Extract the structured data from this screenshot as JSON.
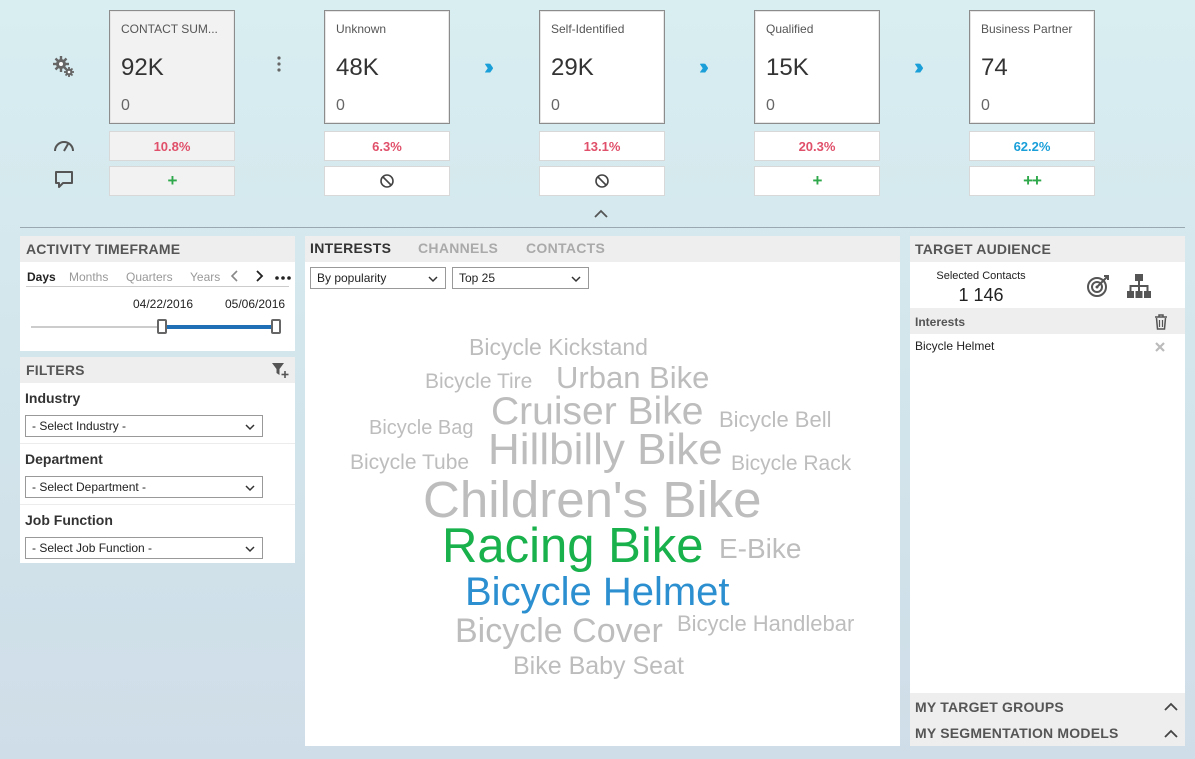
{
  "funnel": {
    "stages": [
      {
        "name": "CONTACT SUM...",
        "value": "92K",
        "sub": "0",
        "percent": "10.8%",
        "action": "plus"
      },
      {
        "name": "Unknown",
        "value": "48K",
        "sub": "0",
        "percent": "6.3%",
        "action": "block"
      },
      {
        "name": "Self-Identified",
        "value": "29K",
        "sub": "0",
        "percent": "13.1%",
        "action": "block"
      },
      {
        "name": "Qualified",
        "value": "15K",
        "sub": "0",
        "percent": "20.3%",
        "action": "plus"
      },
      {
        "name": "Business Partner",
        "value": "74",
        "sub": "0",
        "percent": "62.2%",
        "action": "double-plus"
      }
    ],
    "plus_glyph": "+",
    "double_plus_glyph": "++",
    "arrow_glyph": "›››"
  },
  "activity_timeframe": {
    "title": "ACTIVITY TIMEFRAME",
    "tabs": [
      "Days",
      "Months",
      "Quarters",
      "Years"
    ],
    "active_tab": "Days",
    "start_date": "04/22/2016",
    "end_date": "05/06/2016",
    "range_fraction": [
      0.525,
      1.0
    ]
  },
  "filters": {
    "title": "FILTERS",
    "items": [
      {
        "label": "Industry",
        "value": "- Select Industry -"
      },
      {
        "label": "Department",
        "value": "- Select Department -"
      },
      {
        "label": "Job Function",
        "value": "- Select Job Function -"
      }
    ]
  },
  "interests": {
    "tabs": [
      "INTERESTS",
      "CHANNELS",
      "CONTACTS"
    ],
    "active_tab": "INTERESTS",
    "sort": "By popularity",
    "limit": "Top 25",
    "words": [
      {
        "text": "Bicycle Kickstand",
        "color": "#bdbdbd"
      },
      {
        "text": "Bicycle Tire",
        "color": "#bdbdbd"
      },
      {
        "text": "Urban Bike",
        "color": "#bdbdbd"
      },
      {
        "text": "Bicycle Bag",
        "color": "#bdbdbd"
      },
      {
        "text": "Cruiser Bike",
        "color": "#bdbdbd"
      },
      {
        "text": "Bicycle Bell",
        "color": "#bdbdbd"
      },
      {
        "text": "Bicycle Tube",
        "color": "#bdbdbd"
      },
      {
        "text": "Hillbilly Bike",
        "color": "#bdbdbd"
      },
      {
        "text": "Bicycle Rack",
        "color": "#bdbdbd"
      },
      {
        "text": "Children's Bike",
        "color": "#bdbdbd"
      },
      {
        "text": "Racing Bike",
        "color": "#18b14b"
      },
      {
        "text": "E-Bike",
        "color": "#bdbdbd"
      },
      {
        "text": "Bicycle Helmet",
        "color": "#2b8fd0"
      },
      {
        "text": "Bicycle Cover",
        "color": "#bdbdbd"
      },
      {
        "text": "Bicycle Handlebar",
        "color": "#bdbdbd"
      },
      {
        "text": "Bike Baby Seat",
        "color": "#bdbdbd"
      }
    ]
  },
  "target_audience": {
    "title": "TARGET AUDIENCE",
    "selected_label": "Selected Contacts",
    "selected_count": "1 146",
    "interests_label": "Interests",
    "interests": [
      "Bicycle Helmet"
    ],
    "sections": [
      "MY TARGET GROUPS",
      "MY SEGMENTATION MODELS"
    ]
  },
  "colors": {
    "accent_blue": "#1a9fd9",
    "pct_red": "#e0506a",
    "green": "#18b14b"
  }
}
